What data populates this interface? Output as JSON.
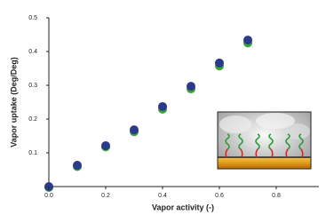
{
  "chart_data": {
    "type": "scatter",
    "x_label": "Vapor activity (-)",
    "y_label": "Vapor uptake (Deg/Deg)",
    "x": [
      0,
      0.1,
      0.2,
      0.3,
      0.4,
      0.5,
      0.6,
      0.7
    ],
    "series": [
      {
        "color": "#3aa535",
        "values": [
          0,
          0.062,
          0.12,
          0.165,
          0.232,
          0.292,
          0.36,
          0.428
        ]
      },
      {
        "color": "#2b3a8a",
        "values": [
          0,
          0.063,
          0.121,
          0.168,
          0.237,
          0.297,
          0.366,
          0.434
        ]
      }
    ],
    "xlim": [
      0,
      0.95
    ],
    "ylim": [
      0,
      0.5
    ],
    "xticks": [
      {
        "value": 0,
        "label": "0.0"
      },
      0.2,
      0.4,
      0.6,
      0.8
    ],
    "yticks": [
      0.1,
      0.2,
      0.3,
      0.4,
      0.5
    ]
  }
}
